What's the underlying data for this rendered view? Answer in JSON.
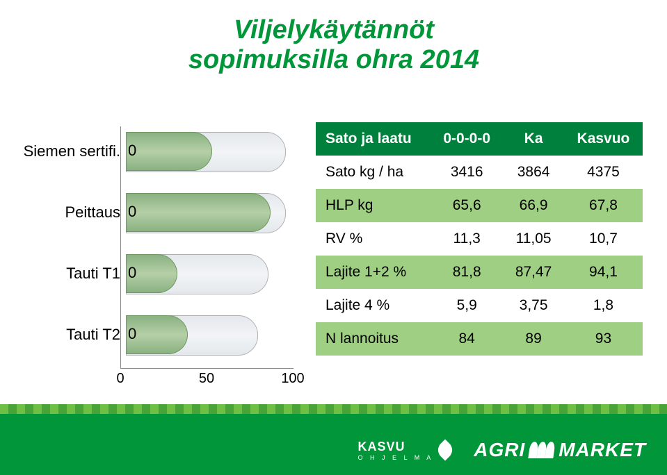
{
  "title": {
    "line1": "Viljelykäytännöt",
    "line2": "sopimuksilla  ohra 2014",
    "color": "#009639",
    "fontsize": 38
  },
  "chart": {
    "type": "bar-horizontal",
    "categories": [
      "Siemen sertifi.",
      "Peittaus",
      "Tauti T1",
      "Tauti T2"
    ],
    "zeros": [
      "0",
      "0",
      "0",
      "0"
    ],
    "back_widths_pct": [
      92,
      92,
      82,
      76
    ],
    "front_widths_pct": [
      50,
      84,
      30,
      36
    ],
    "xlim": [
      0,
      100
    ],
    "xtick_labels": [
      "0",
      "50",
      "100"
    ],
    "xtick_pos_pct": [
      0,
      50,
      100
    ],
    "bar_back_gradient": [
      "#e4e8ec",
      "#f2f4f6",
      "#e4e8ec"
    ],
    "bar_front_gradient": [
      "#88b07f",
      "#b5cfa7",
      "#88b07f"
    ],
    "axis_color": "#888888",
    "label_fontsize": 22
  },
  "table": {
    "header_bg": "#00803d",
    "header_fg": "#ffffff",
    "row_even_bg": "#9ecf83",
    "row_odd_bg": "#ffffff",
    "columns": [
      "Sato ja laatu",
      "0-0-0-0",
      "Ka",
      "Kasvuo"
    ],
    "rows": [
      [
        "Sato kg / ha",
        "3416",
        "3864",
        "4375"
      ],
      [
        "HLP kg",
        "65,6",
        "66,9",
        "67,8"
      ],
      [
        "RV %",
        "11,3",
        "11,05",
        "10,7"
      ],
      [
        "Lajite 1+2 %",
        "81,8",
        "87,47",
        "94,1"
      ],
      [
        "Lajite 4 %",
        "5,9",
        "3,75",
        "1,8"
      ],
      [
        "N lannoitus",
        "84",
        "89",
        "93"
      ]
    ],
    "fontsize": 21
  },
  "footer": {
    "bar_color": "#009639",
    "logo1": {
      "text": "KASVU",
      "sub": "O H J E L M A"
    },
    "logo2": {
      "part1": "AGRI",
      "part2": "MARKET"
    }
  }
}
